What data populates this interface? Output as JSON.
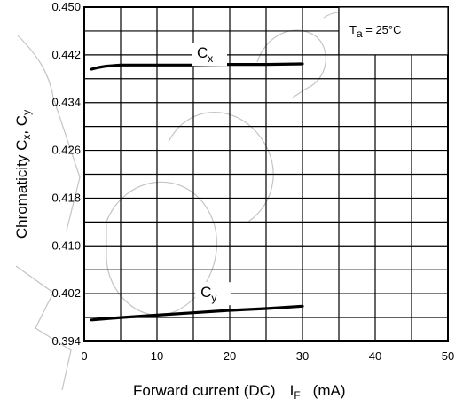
{
  "chart_data": {
    "type": "line",
    "xlabel": "Forward current (DC)",
    "xlabel_symbol": "I",
    "xlabel_symbol_sub": "F",
    "xlabel_unit": "(mA)",
    "ylabel_main": "Chromaticity C",
    "ylabel_sub_x": "x",
    "ylabel_sep": ", C",
    "ylabel_sub_y": "y",
    "condition_main": "T",
    "condition_sub": "a",
    "condition_rest": " = 25°C",
    "xlim": [
      0,
      50
    ],
    "ylim": [
      0.394,
      0.45
    ],
    "x_ticks": [
      0,
      10,
      20,
      30,
      40,
      50
    ],
    "x_tick_labels": [
      "0",
      "10",
      "20",
      "30",
      "40",
      "50"
    ],
    "y_ticks": [
      0.394,
      0.402,
      0.41,
      0.418,
      0.426,
      0.434,
      0.442,
      0.45
    ],
    "y_tick_labels": [
      "0.394",
      "0.402",
      "0.410",
      "0.418",
      "0.426",
      "0.434",
      "0.442",
      "0.450"
    ],
    "grid": true,
    "series": [
      {
        "name": "C",
        "name_sub": "x",
        "x": [
          1,
          2,
          3,
          5,
          10,
          15,
          20,
          25,
          30
        ],
        "y": [
          0.4396,
          0.4399,
          0.4401,
          0.4403,
          0.4403,
          0.4403,
          0.4404,
          0.4404,
          0.4405
        ]
      },
      {
        "name": "C",
        "name_sub": "y",
        "x": [
          1,
          5,
          10,
          15,
          20,
          25,
          30
        ],
        "y": [
          0.3976,
          0.398,
          0.3984,
          0.3988,
          0.3992,
          0.3995,
          0.3999
        ]
      }
    ]
  }
}
